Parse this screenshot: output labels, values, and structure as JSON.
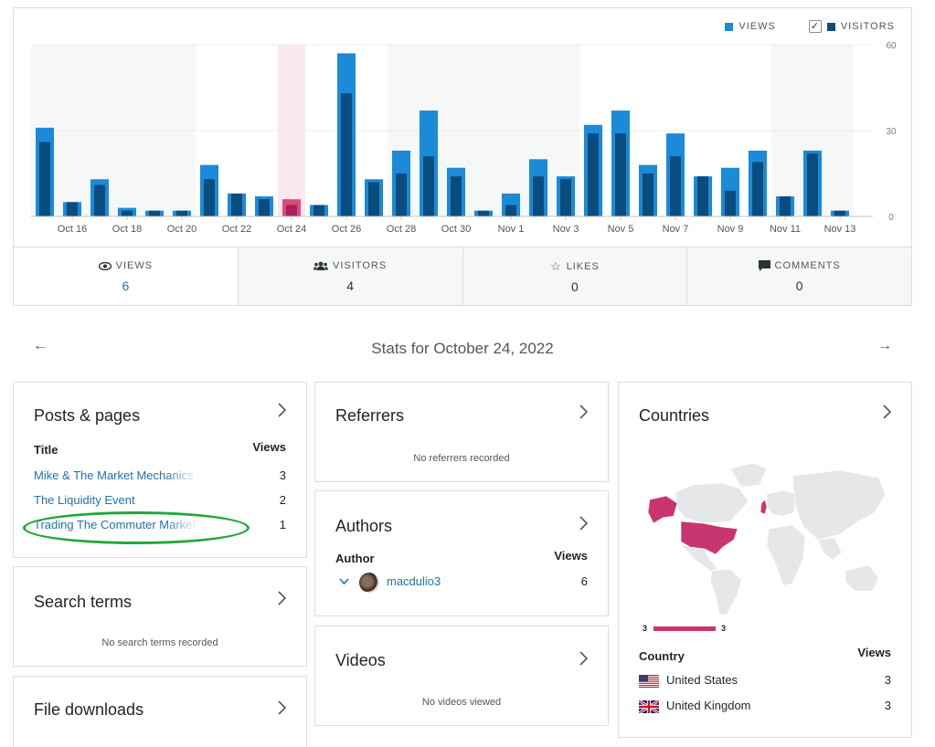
{
  "legend": {
    "views": "VIEWS",
    "visitors": "VISITORS",
    "check": "✓"
  },
  "colors": {
    "views": "#1a8ad9",
    "visitors": "#0b4c7e",
    "selected": "#d94b7e",
    "highlight": "#fce8ef",
    "map_highlight": "#c9356e"
  },
  "chart_data": {
    "type": "bar",
    "categories": [
      "Oct 15",
      "Oct 16",
      "Oct 17",
      "Oct 18",
      "Oct 19",
      "Oct 20",
      "Oct 21",
      "Oct 22",
      "Oct 23",
      "Oct 24",
      "Oct 25",
      "Oct 26",
      "Oct 27",
      "Oct 28",
      "Oct 29",
      "Oct 30",
      "Oct 31",
      "Nov 1",
      "Nov 2",
      "Nov 3",
      "Nov 4",
      "Nov 5",
      "Nov 6",
      "Nov 7",
      "Nov 8",
      "Nov 9",
      "Nov 10",
      "Nov 11",
      "Nov 12",
      "Nov 13"
    ],
    "tick_labels": [
      "Oct 16",
      "Oct 18",
      "Oct 20",
      "Oct 22",
      "Oct 24",
      "Oct 26",
      "Oct 28",
      "Oct 30",
      "Nov 1",
      "Nov 3",
      "Nov 5",
      "Nov 7",
      "Nov 9",
      "Nov 11",
      "Nov 13"
    ],
    "series": [
      {
        "name": "VIEWS",
        "values": [
          31,
          5,
          13,
          3,
          2,
          2,
          18,
          8,
          7,
          6,
          4,
          57,
          13,
          23,
          37,
          17,
          2,
          8,
          20,
          14,
          32,
          37,
          18,
          29,
          14,
          17,
          23,
          7,
          23,
          2
        ]
      },
      {
        "name": "VISITORS",
        "values": [
          26,
          5,
          11,
          2,
          2,
          2,
          13,
          8,
          6,
          4,
          4,
          43,
          12,
          15,
          21,
          14,
          2,
          4,
          14,
          13,
          29,
          29,
          15,
          21,
          14,
          9,
          19,
          7,
          22,
          2
        ]
      }
    ],
    "selected_category": "Oct 24",
    "ylim": [
      0,
      60
    ],
    "yticks": [
      "0",
      "30",
      "60"
    ]
  },
  "tabs": [
    {
      "label": "VIEWS",
      "value": "6",
      "icon": "eye-icon"
    },
    {
      "label": "VISITORS",
      "value": "4",
      "icon": "people-icon"
    },
    {
      "label": "LIKES",
      "value": "0",
      "icon": "star-icon"
    },
    {
      "label": "COMMENTS",
      "value": "0",
      "icon": "comment-icon"
    }
  ],
  "nav": {
    "prev": "←",
    "next": "→",
    "title": "Stats for October 24, 2022"
  },
  "posts": {
    "title": "Posts & pages",
    "col_title": "Title",
    "col_views": "Views",
    "rows": [
      {
        "label": "Mike & The Market Mechanics",
        "value": "3"
      },
      {
        "label": "The Liquidity Event",
        "value": "2"
      },
      {
        "label": "Trading The Commuter Market",
        "value": "1"
      }
    ]
  },
  "search": {
    "title": "Search terms",
    "empty": "No search terms recorded"
  },
  "downloads": {
    "title": "File downloads"
  },
  "referrers": {
    "title": "Referrers",
    "empty": "No referrers recorded"
  },
  "authors": {
    "title": "Authors",
    "col_author": "Author",
    "col_views": "Views",
    "name": "macdulio3",
    "value": "6"
  },
  "videos": {
    "title": "Videos",
    "empty": "No videos viewed"
  },
  "countries": {
    "title": "Countries",
    "scale_min": "3",
    "scale_max": "3",
    "col_country": "Country",
    "col_views": "Views",
    "rows": [
      {
        "label": "United States",
        "value": "3"
      },
      {
        "label": "United Kingdom",
        "value": "3"
      }
    ]
  },
  "chevron": "›"
}
